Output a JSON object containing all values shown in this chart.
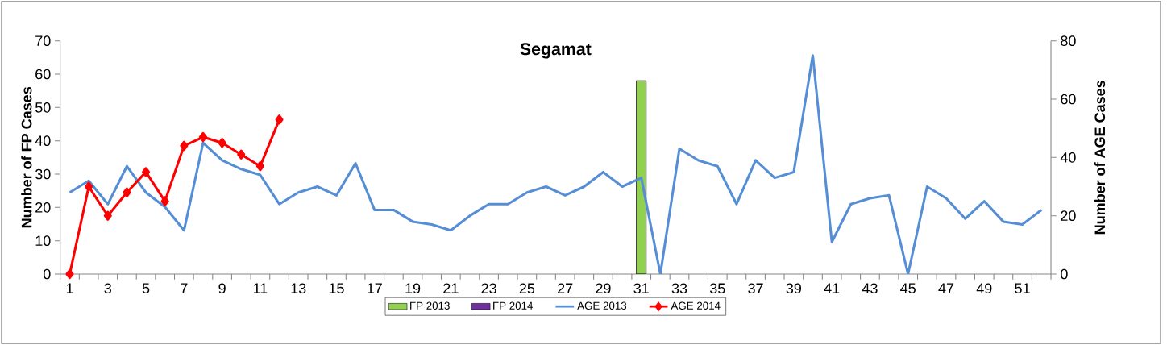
{
  "chart_data": {
    "type": "bar",
    "title": "Segamat",
    "ylabel": "Number of FP Cases",
    "y2label": "Number of AGE Cases",
    "categories": [
      "1",
      null,
      "3",
      null,
      "5",
      null,
      "7",
      null,
      "9",
      null,
      "11",
      null,
      "13",
      null,
      "15",
      null,
      "17",
      null,
      "19",
      null,
      "21",
      null,
      "23",
      null,
      "25",
      null,
      "27",
      null,
      "29",
      null,
      "31",
      null,
      "33",
      null,
      "35",
      null,
      "37",
      null,
      "39",
      null,
      "41",
      null,
      "43",
      null,
      "45",
      null,
      "47",
      null,
      "49",
      null,
      "51",
      null
    ],
    "ylim": [
      0,
      70
    ],
    "yticks": [
      0,
      10,
      20,
      30,
      40,
      50,
      60,
      70
    ],
    "y2lim": [
      0,
      80
    ],
    "y2ticks": [
      0,
      20,
      40,
      60,
      80
    ],
    "legend": "bottom",
    "series": [
      {
        "name": "FP 2013",
        "color": "#92d050",
        "values": [
          null,
          null,
          null,
          null,
          null,
          null,
          null,
          null,
          null,
          null,
          null,
          null,
          null,
          null,
          null,
          null,
          null,
          null,
          null,
          null,
          null,
          null,
          null,
          null,
          null,
          null,
          null,
          null,
          null,
          null,
          58,
          null,
          null,
          null,
          null,
          null,
          null,
          null,
          null,
          null,
          null,
          null,
          null,
          null,
          null,
          null,
          null,
          null,
          null,
          null,
          null,
          null
        ]
      },
      {
        "name": "FP 2014",
        "color": "#7030a0",
        "values": [
          null,
          null,
          null,
          null,
          null,
          null,
          null,
          null,
          null,
          null,
          null,
          null,
          null,
          null,
          null,
          null,
          null,
          null,
          null,
          null,
          null,
          null,
          null,
          null,
          null,
          null,
          null,
          null,
          null,
          null,
          null,
          null,
          null,
          null,
          null,
          null,
          null,
          null,
          null,
          null,
          null,
          null,
          null,
          null,
          null,
          null,
          null,
          null,
          null,
          null,
          null,
          null
        ]
      },
      {
        "name": "AGE 2013",
        "type": "line",
        "axis": "y2",
        "color": "#558ed5",
        "marker": "none",
        "values": [
          28,
          32,
          24,
          37,
          28,
          23,
          15,
          45,
          39,
          36,
          34,
          24,
          28,
          30,
          27,
          38,
          22,
          22,
          18,
          17,
          15,
          20,
          24,
          24,
          28,
          30,
          27,
          30,
          35,
          30,
          33,
          0,
          43,
          39,
          37,
          24,
          39,
          33,
          35,
          75,
          11,
          24,
          26,
          27,
          0,
          30,
          26,
          19,
          25,
          18,
          17,
          22
        ]
      },
      {
        "name": "AGE 2014",
        "type": "line",
        "axis": "y2",
        "color": "#ff0000",
        "marker": "diamond",
        "values": [
          0,
          30,
          20,
          28,
          35,
          25,
          44,
          47,
          45,
          41,
          37,
          53,
          null,
          null,
          null,
          null,
          null,
          null,
          null,
          null,
          null,
          null,
          null,
          null,
          null,
          null,
          null,
          null,
          null,
          null,
          null,
          null,
          null,
          null,
          null,
          null,
          null,
          null,
          null,
          null,
          null,
          null,
          null,
          null,
          null,
          null,
          null,
          null,
          null,
          null,
          null,
          null
        ]
      }
    ]
  }
}
